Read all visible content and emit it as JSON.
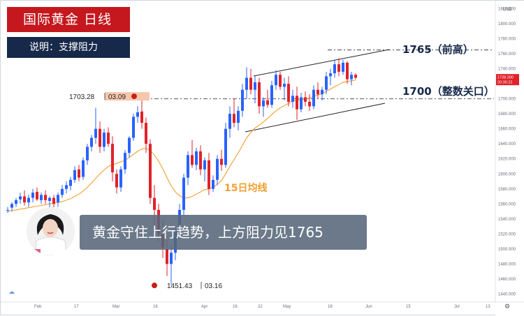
{
  "header": {
    "title": "国际黄金 日线",
    "desc": "说明：支撑阻力",
    "subtitle": "黄金守住上行趋势，上方阻力见1765"
  },
  "annotations": {
    "resistance": "1765（前高）",
    "support": "1700（整数关口）",
    "ma": "15日均线",
    "high_price": "1703.28",
    "high_date": "03.09",
    "low_price": "1451.43",
    "low_date": "03.16"
  },
  "price_tags": {
    "current": "1728.300",
    "timer": "20:35:22"
  },
  "currency": "USD",
  "colors": {
    "up": "#2962ff",
    "down": "#e0222a",
    "ma": "#f0a030",
    "title_bg": "#c4181e",
    "desc_bg": "#16294a",
    "marker": "#c61f16"
  },
  "chart_data": {
    "type": "candlestick",
    "y_axis_labels": [
      "1820.000",
      "1800.000",
      "1780.000",
      "1760.000",
      "1740.000",
      "1720.000",
      "1700.000",
      "1680.000",
      "1660.000",
      "1640.000",
      "1620.000",
      "1600.000",
      "1580.000",
      "1560.000",
      "1540.000",
      "1520.000",
      "1500.000",
      "1480.000",
      "1460.000",
      "1440.000"
    ],
    "x_axis_labels": [
      "Feb",
      "17",
      "Mar",
      "16",
      "Apr",
      "16",
      "22",
      "May",
      "18",
      "Jun",
      "15",
      "Jul",
      "13"
    ],
    "ylim": [
      1433,
      1826
    ],
    "levels": {
      "resistance": 1765,
      "support": 1700
    },
    "ma_period": 15,
    "ohlc": [
      [
        1552,
        1556,
        1548,
        1552
      ],
      [
        1555,
        1562,
        1550,
        1560
      ],
      [
        1560,
        1568,
        1556,
        1565
      ],
      [
        1566,
        1575,
        1560,
        1570
      ],
      [
        1570,
        1578,
        1558,
        1562
      ],
      [
        1562,
        1572,
        1556,
        1568
      ],
      [
        1568,
        1580,
        1562,
        1575
      ],
      [
        1576,
        1582,
        1564,
        1566
      ],
      [
        1565,
        1575,
        1560,
        1572
      ],
      [
        1572,
        1578,
        1560,
        1565
      ],
      [
        1564,
        1570,
        1555,
        1568
      ],
      [
        1568,
        1572,
        1552,
        1560
      ],
      [
        1562,
        1575,
        1556,
        1572
      ],
      [
        1572,
        1585,
        1568,
        1580
      ],
      [
        1580,
        1590,
        1574,
        1585
      ],
      [
        1584,
        1596,
        1578,
        1592
      ],
      [
        1592,
        1610,
        1588,
        1605
      ],
      [
        1606,
        1612,
        1590,
        1595
      ],
      [
        1596,
        1622,
        1592,
        1618
      ],
      [
        1618,
        1640,
        1612,
        1636
      ],
      [
        1636,
        1652,
        1630,
        1648
      ],
      [
        1648,
        1688,
        1640,
        1660
      ],
      [
        1660,
        1670,
        1628,
        1636
      ],
      [
        1636,
        1660,
        1630,
        1655
      ],
      [
        1655,
        1662,
        1636,
        1640
      ],
      [
        1640,
        1650,
        1590,
        1602
      ],
      [
        1600,
        1606,
        1574,
        1582
      ],
      [
        1582,
        1610,
        1576,
        1606
      ],
      [
        1606,
        1632,
        1600,
        1628
      ],
      [
        1628,
        1650,
        1622,
        1648
      ],
      [
        1648,
        1680,
        1644,
        1676
      ],
      [
        1676,
        1690,
        1668,
        1682
      ],
      [
        1683,
        1704,
        1660,
        1668
      ],
      [
        1668,
        1675,
        1628,
        1640
      ],
      [
        1640,
        1646,
        1560,
        1568
      ],
      [
        1568,
        1585,
        1530,
        1552
      ],
      [
        1552,
        1560,
        1510,
        1520
      ],
      [
        1520,
        1540,
        1488,
        1502
      ],
      [
        1500,
        1512,
        1464,
        1480
      ],
      [
        1480,
        1505,
        1452,
        1495
      ],
      [
        1495,
        1530,
        1485,
        1525
      ],
      [
        1525,
        1560,
        1515,
        1552
      ],
      [
        1552,
        1600,
        1545,
        1595
      ],
      [
        1595,
        1630,
        1585,
        1625
      ],
      [
        1625,
        1645,
        1608,
        1612
      ],
      [
        1612,
        1635,
        1605,
        1630
      ],
      [
        1630,
        1638,
        1598,
        1606
      ],
      [
        1606,
        1622,
        1590,
        1618
      ],
      [
        1618,
        1628,
        1572,
        1580
      ],
      [
        1580,
        1598,
        1576,
        1592
      ],
      [
        1592,
        1625,
        1585,
        1620
      ],
      [
        1620,
        1632,
        1604,
        1612
      ],
      [
        1612,
        1668,
        1608,
        1660
      ],
      [
        1660,
        1690,
        1648,
        1680
      ],
      [
        1680,
        1700,
        1662,
        1668
      ],
      [
        1668,
        1690,
        1658,
        1684
      ],
      [
        1684,
        1720,
        1676,
        1712
      ],
      [
        1712,
        1742,
        1700,
        1728
      ],
      [
        1728,
        1740,
        1706,
        1712
      ],
      [
        1712,
        1730,
        1694,
        1722
      ],
      [
        1722,
        1728,
        1680,
        1690
      ],
      [
        1690,
        1702,
        1676,
        1698
      ],
      [
        1698,
        1712,
        1688,
        1692
      ],
      [
        1692,
        1724,
        1688,
        1718
      ],
      [
        1718,
        1738,
        1712,
        1732
      ],
      [
        1732,
        1736,
        1712,
        1716
      ],
      [
        1716,
        1728,
        1698,
        1720
      ],
      [
        1720,
        1730,
        1690,
        1696
      ],
      [
        1696,
        1712,
        1688,
        1704
      ],
      [
        1704,
        1716,
        1672,
        1686
      ],
      [
        1686,
        1708,
        1682,
        1702
      ],
      [
        1702,
        1710,
        1690,
        1696
      ],
      [
        1696,
        1706,
        1684,
        1690
      ],
      [
        1690,
        1718,
        1686,
        1712
      ],
      [
        1712,
        1722,
        1700,
        1706
      ],
      [
        1706,
        1716,
        1698,
        1712
      ],
      [
        1712,
        1736,
        1706,
        1730
      ],
      [
        1730,
        1740,
        1718,
        1734
      ],
      [
        1734,
        1752,
        1728,
        1746
      ],
      [
        1746,
        1754,
        1730,
        1736
      ],
      [
        1736,
        1752,
        1732,
        1748
      ],
      [
        1748,
        1750,
        1720,
        1726
      ],
      [
        1726,
        1736,
        1718,
        1732
      ],
      [
        1732,
        1734,
        1726,
        1728
      ]
    ],
    "ma15": [
      1550,
      1551,
      1552,
      1553,
      1554,
      1555,
      1556,
      1557,
      1558,
      1559,
      1560,
      1561,
      1562,
      1563,
      1565,
      1567,
      1570,
      1573,
      1577,
      1582,
      1588,
      1594,
      1600,
      1605,
      1610,
      1612,
      1614,
      1616,
      1618,
      1622,
      1626,
      1630,
      1633,
      1634,
      1631,
      1625,
      1617,
      1607,
      1595,
      1584,
      1576,
      1571,
      1568,
      1568,
      1570,
      1573,
      1576,
      1579,
      1580,
      1582,
      1586,
      1591,
      1600,
      1610,
      1619,
      1628,
      1638,
      1648,
      1655,
      1661,
      1665,
      1669,
      1674,
      1679,
      1684,
      1688,
      1691,
      1694,
      1697,
      1698,
      1699,
      1700,
      1701,
      1703,
      1705,
      1707,
      1710,
      1713,
      1716,
      1719,
      1722,
      1723,
      1724,
      1725
    ]
  }
}
